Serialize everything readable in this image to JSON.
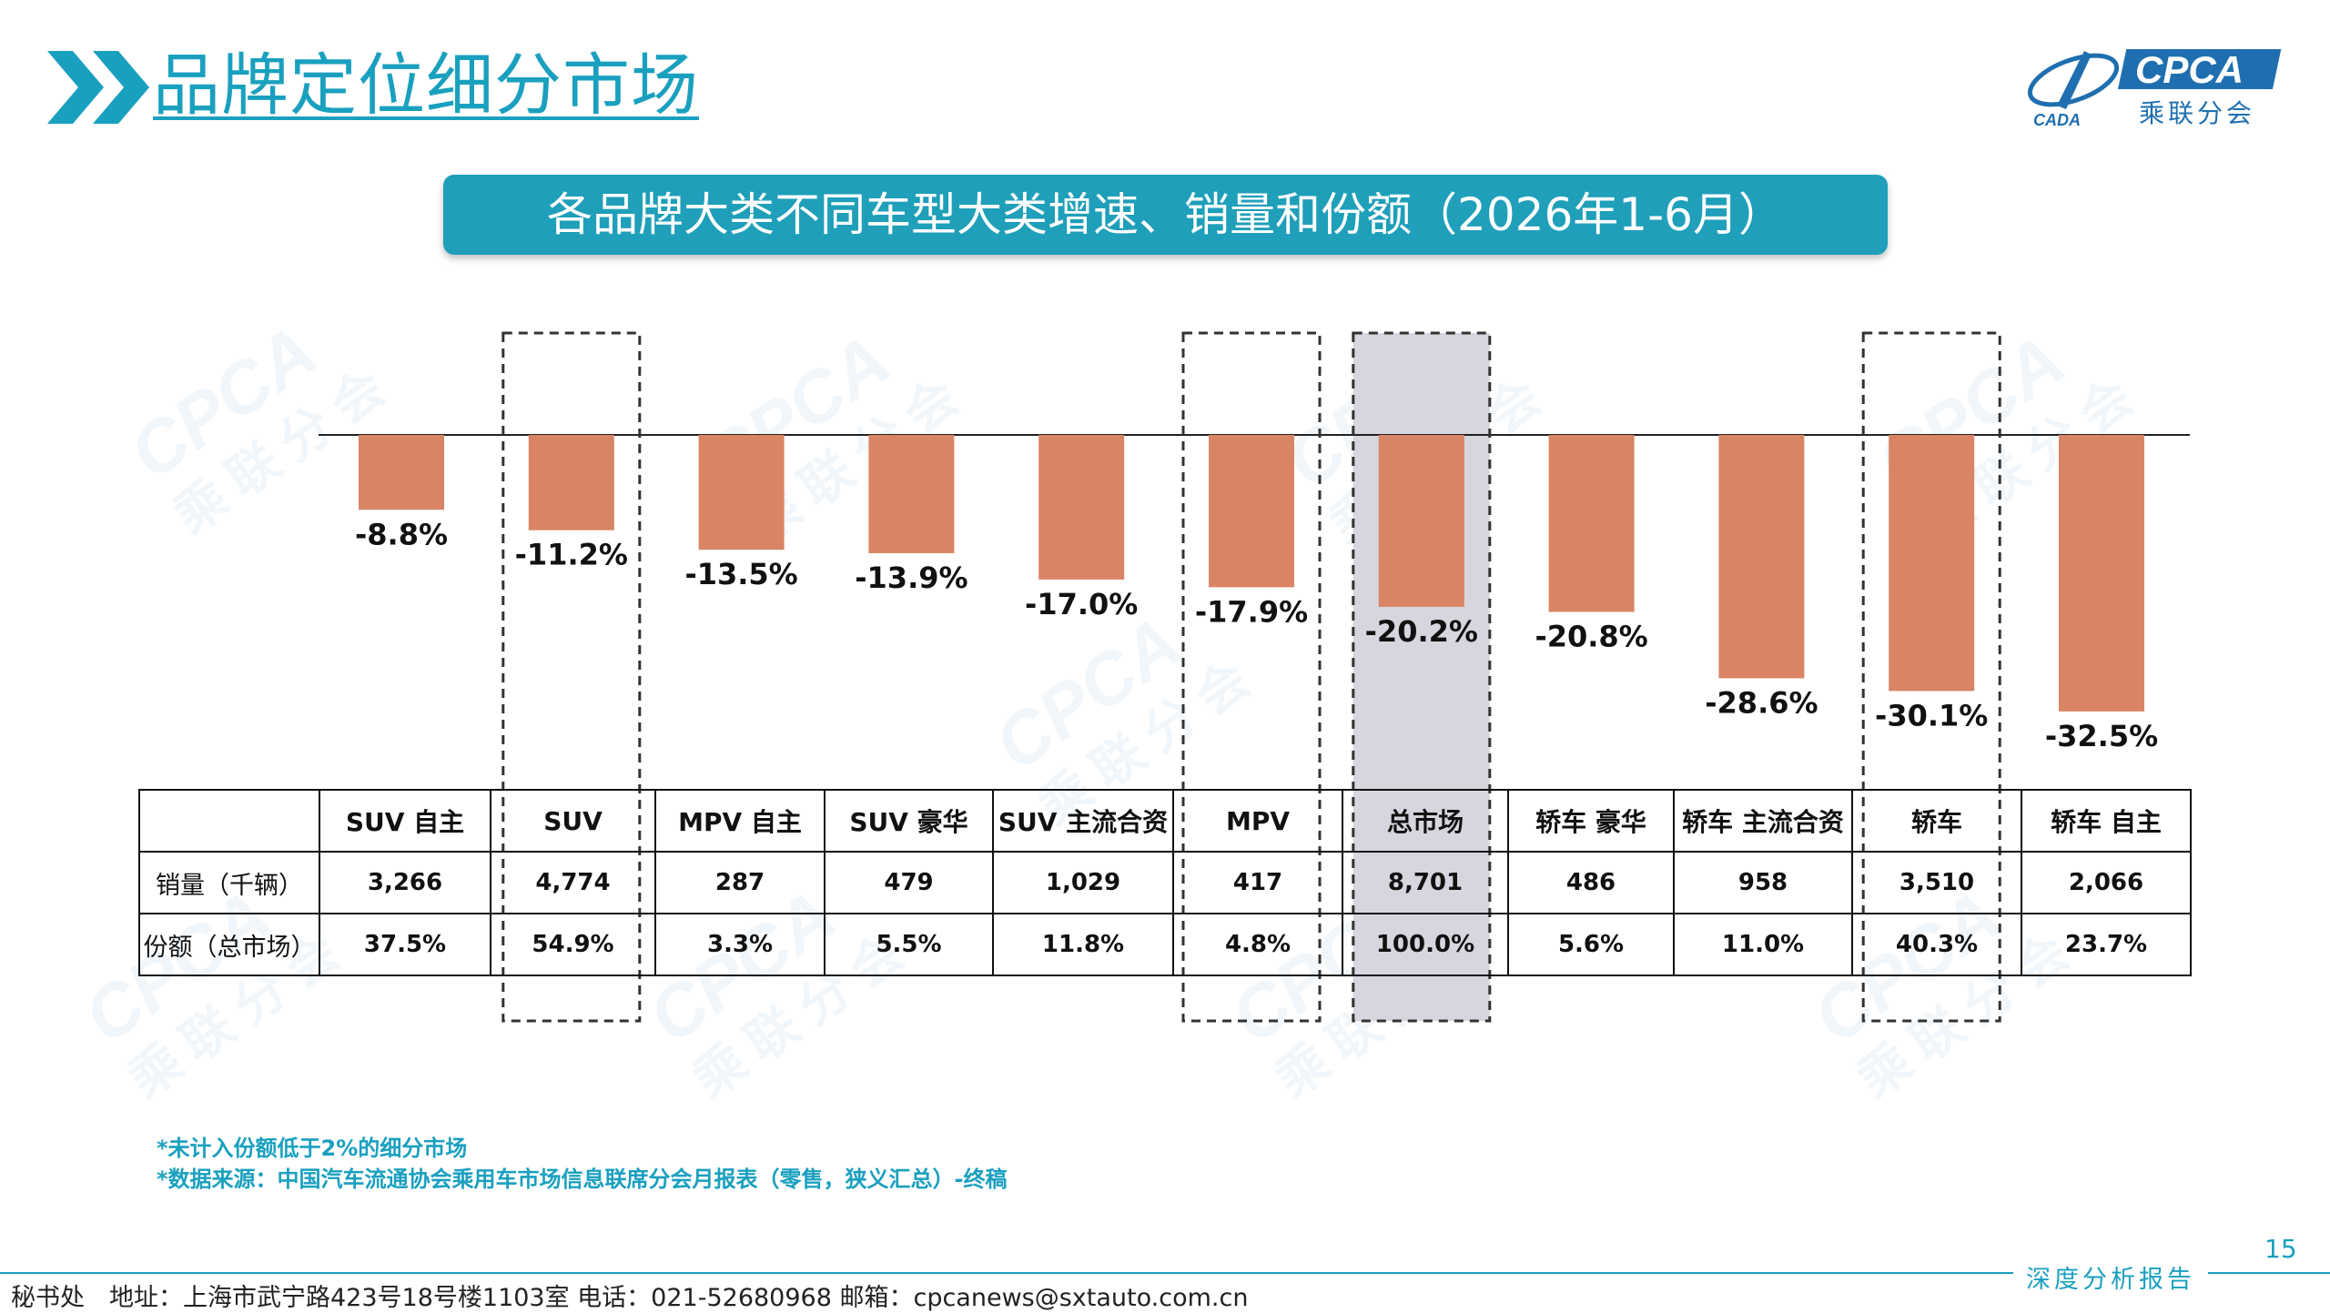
{
  "header": {
    "title": "品牌定位细分市场",
    "logo_text": "CPCA",
    "logo_subtext": "乘联分会",
    "logo_mark_text": "CADA"
  },
  "banner": {
    "title": "各品牌大类不同车型大类增速、销量和份额（2026年1-6月）"
  },
  "watermark": {
    "text": "CPCA",
    "subtext": "乘联分会"
  },
  "colors": {
    "accent": "#1aa0bf",
    "bar": "#d98565",
    "highlight": "#d7d5de",
    "banner": "#1f9fb9"
  },
  "chart_data": {
    "type": "bar",
    "categories": [
      "SUV 自主",
      "SUV",
      "MPV 自主",
      "SUV 豪华",
      "SUV 主流合资",
      "MPV",
      "总市场",
      "轿车 豪华",
      "轿车 主流合资",
      "轿车",
      "轿车 自主"
    ],
    "values": [
      -8.8,
      -11.2,
      -13.5,
      -13.9,
      -17.0,
      -17.9,
      -20.2,
      -20.8,
      -28.6,
      -30.1,
      -32.5
    ],
    "value_labels": [
      "-8.8%",
      "-11.2%",
      "-13.5%",
      "-13.9%",
      "-17.0%",
      "-17.9%",
      "-20.2%",
      "-20.8%",
      "-28.6%",
      "-30.1%",
      "-32.5%"
    ],
    "unit": "%",
    "dashed_boxes": [
      "SUV",
      "MPV",
      "总市场",
      "轿车"
    ],
    "shaded": [
      "总市场"
    ],
    "title": "各品牌大类不同车型大类增速、销量和份额（2026年1-6月）",
    "xlabel": "",
    "ylabel": "",
    "ylim": [
      -35,
      0
    ],
    "grid": false,
    "legend": "none",
    "table": {
      "rows": [
        {
          "label": "销量（千辆）",
          "values": [
            "3,266",
            "4,774",
            "287",
            "479",
            "1,029",
            "417",
            "8,701",
            "486",
            "958",
            "3,510",
            "2,066"
          ]
        },
        {
          "label": "份额（总市场）",
          "values": [
            "37.5%",
            "54.9%",
            "3.3%",
            "5.5%",
            "11.8%",
            "4.8%",
            "100.0%",
            "5.6%",
            "11.0%",
            "40.3%",
            "23.7%"
          ]
        }
      ]
    }
  },
  "notes": {
    "note1": "*未计入份额低于2%的细分市场",
    "note2": "*数据来源：中国汽车流通协会乘用车市场信息联席分会月报表（零售，狭义汇总）-终稿"
  },
  "footer": {
    "text": "秘书处　地址：上海市武宁路423号18号楼1103室  电话：021-52680968   邮箱：cpcanews@sxtauto.com.cn",
    "tag": "深度分析报告",
    "page_number": "15"
  }
}
